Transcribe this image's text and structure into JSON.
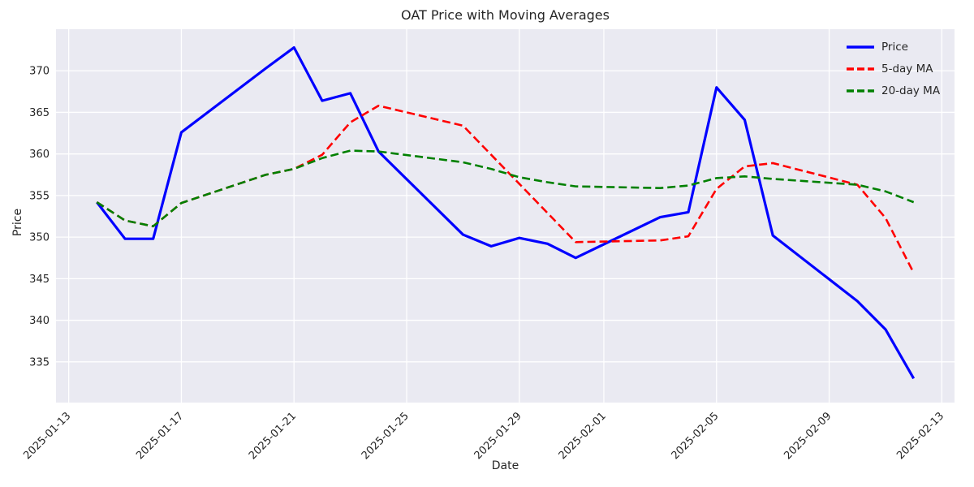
{
  "colors": {
    "figure_bg": "#ffffff",
    "plot_bg": "#eaeaf2",
    "grid": "#ffffff",
    "text": "#262626",
    "price": "#0000ff",
    "ma5": "#ff0000",
    "ma20": "#008000"
  },
  "chart_data": {
    "type": "line",
    "title": "OAT Price with Moving Averages",
    "xlabel": "Date",
    "ylabel": "Price",
    "grid": true,
    "legend_position": "upper right",
    "x": [
      "2025-01-14",
      "2025-01-15",
      "2025-01-16",
      "2025-01-17",
      "2025-01-20",
      "2025-01-21",
      "2025-01-22",
      "2025-01-23",
      "2025-01-24",
      "2025-01-27",
      "2025-01-28",
      "2025-01-29",
      "2025-01-30",
      "2025-01-31",
      "2025-02-03",
      "2025-02-04",
      "2025-02-05",
      "2025-02-06",
      "2025-02-07",
      "2025-02-10",
      "2025-02-11",
      "2025-02-12"
    ],
    "series": [
      {
        "name": "Price",
        "color": "#0000ff",
        "dashed": false,
        "line_width": 3.2,
        "values": [
          354.2,
          349.8,
          349.8,
          362.6,
          370.3,
          372.8,
          366.4,
          367.3,
          360.3,
          350.3,
          348.9,
          349.9,
          349.2,
          347.5,
          352.4,
          353.0,
          368.0,
          364.1,
          350.2,
          342.3,
          338.9,
          333.0
        ]
      },
      {
        "name": "5-day MA",
        "color": "#ff0000",
        "dashed": true,
        "line_width": 2.6,
        "values": [
          354.2,
          352.0,
          351.3,
          354.1,
          357.5,
          358.2,
          359.9,
          363.8,
          365.8,
          363.4,
          359.9,
          356.4,
          352.9,
          349.4,
          349.6,
          350.1,
          355.8,
          358.5,
          358.9,
          356.3,
          352.3,
          345.7
        ]
      },
      {
        "name": "20-day MA",
        "color": "#008000",
        "dashed": true,
        "line_width": 2.6,
        "values": [
          354.2,
          352.0,
          351.3,
          354.1,
          357.5,
          358.2,
          359.5,
          360.4,
          360.3,
          359.0,
          358.2,
          357.2,
          356.6,
          356.1,
          355.9,
          356.2,
          357.1,
          357.3,
          357.0,
          356.3,
          355.5,
          354.2
        ]
      }
    ],
    "xticks": [
      "2025-01-13",
      "2025-01-17",
      "2025-01-21",
      "2025-01-25",
      "2025-01-29",
      "2025-02-01",
      "2025-02-05",
      "2025-02-09",
      "2025-02-13"
    ],
    "yticks": [
      335,
      340,
      345,
      350,
      355,
      360,
      365,
      370
    ],
    "x_origin_date": "2025-01-13",
    "xlim_days": [
      -0.45,
      31.45
    ],
    "ylim": [
      330.1,
      375.0
    ]
  }
}
